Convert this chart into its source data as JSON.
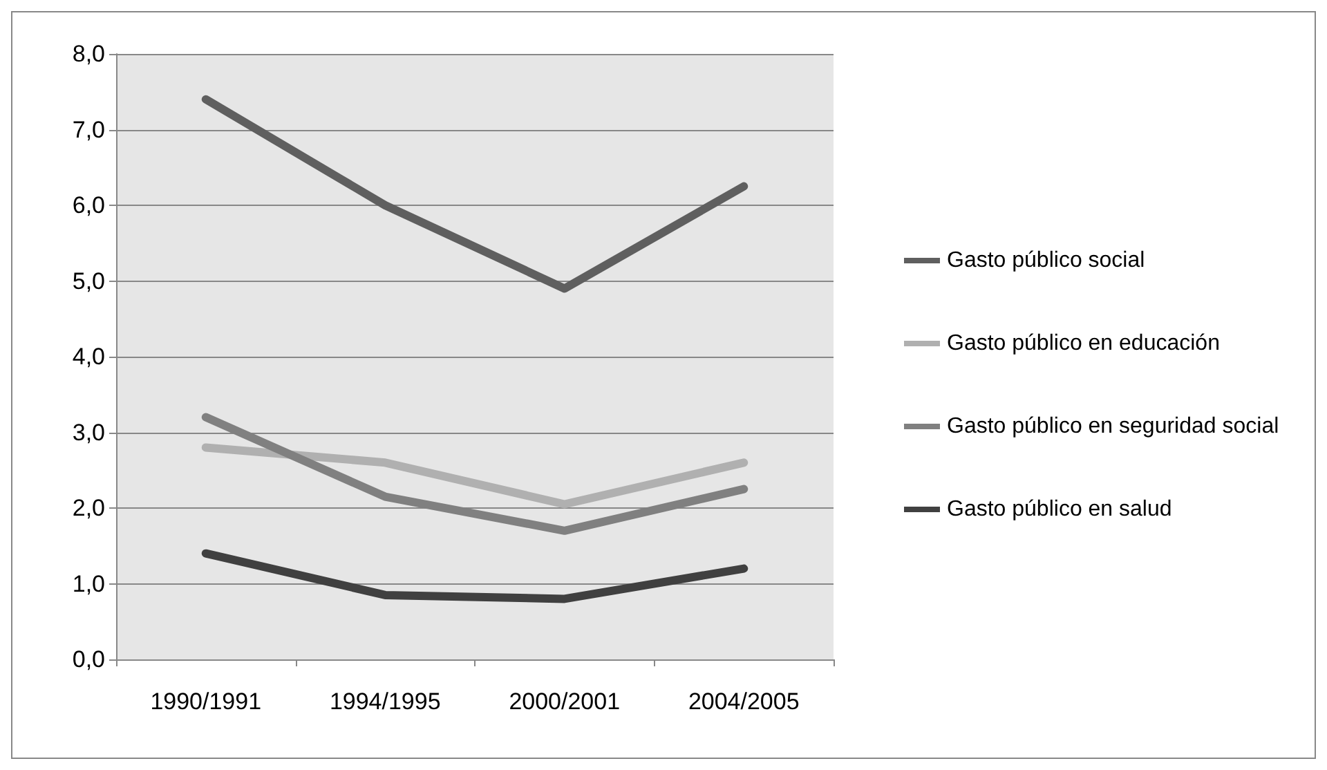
{
  "chart_data": {
    "type": "line",
    "categories": [
      "1990/1991",
      "1994/1995",
      "2000/2001",
      "2004/2005"
    ],
    "series": [
      {
        "name": "Gasto público social",
        "color": "#5f5f5f",
        "values": [
          7.4,
          6.0,
          4.9,
          6.25
        ]
      },
      {
        "name": "Gasto público en educación",
        "color": "#b0b0b0",
        "values": [
          2.8,
          2.6,
          2.05,
          2.6
        ]
      },
      {
        "name": "Gasto público en seguridad social",
        "color": "#808080",
        "values": [
          3.2,
          2.15,
          1.7,
          2.25
        ]
      },
      {
        "name": "Gasto público en salud",
        "color": "#404040",
        "values": [
          1.4,
          0.85,
          0.8,
          1.2
        ]
      }
    ],
    "ylim": [
      0,
      8
    ],
    "yticks": [
      {
        "value": 0,
        "label": "0,0"
      },
      {
        "value": 1,
        "label": "1,0"
      },
      {
        "value": 2,
        "label": "2,0"
      },
      {
        "value": 3,
        "label": "3,0"
      },
      {
        "value": 4,
        "label": "4,0"
      },
      {
        "value": 5,
        "label": "5,0"
      },
      {
        "value": 6,
        "label": "6,0"
      },
      {
        "value": 7,
        "label": "7,0"
      },
      {
        "value": 8,
        "label": "8,0"
      }
    ],
    "grid": "y",
    "legend": "right",
    "marker": "none",
    "line_style": "solid"
  }
}
